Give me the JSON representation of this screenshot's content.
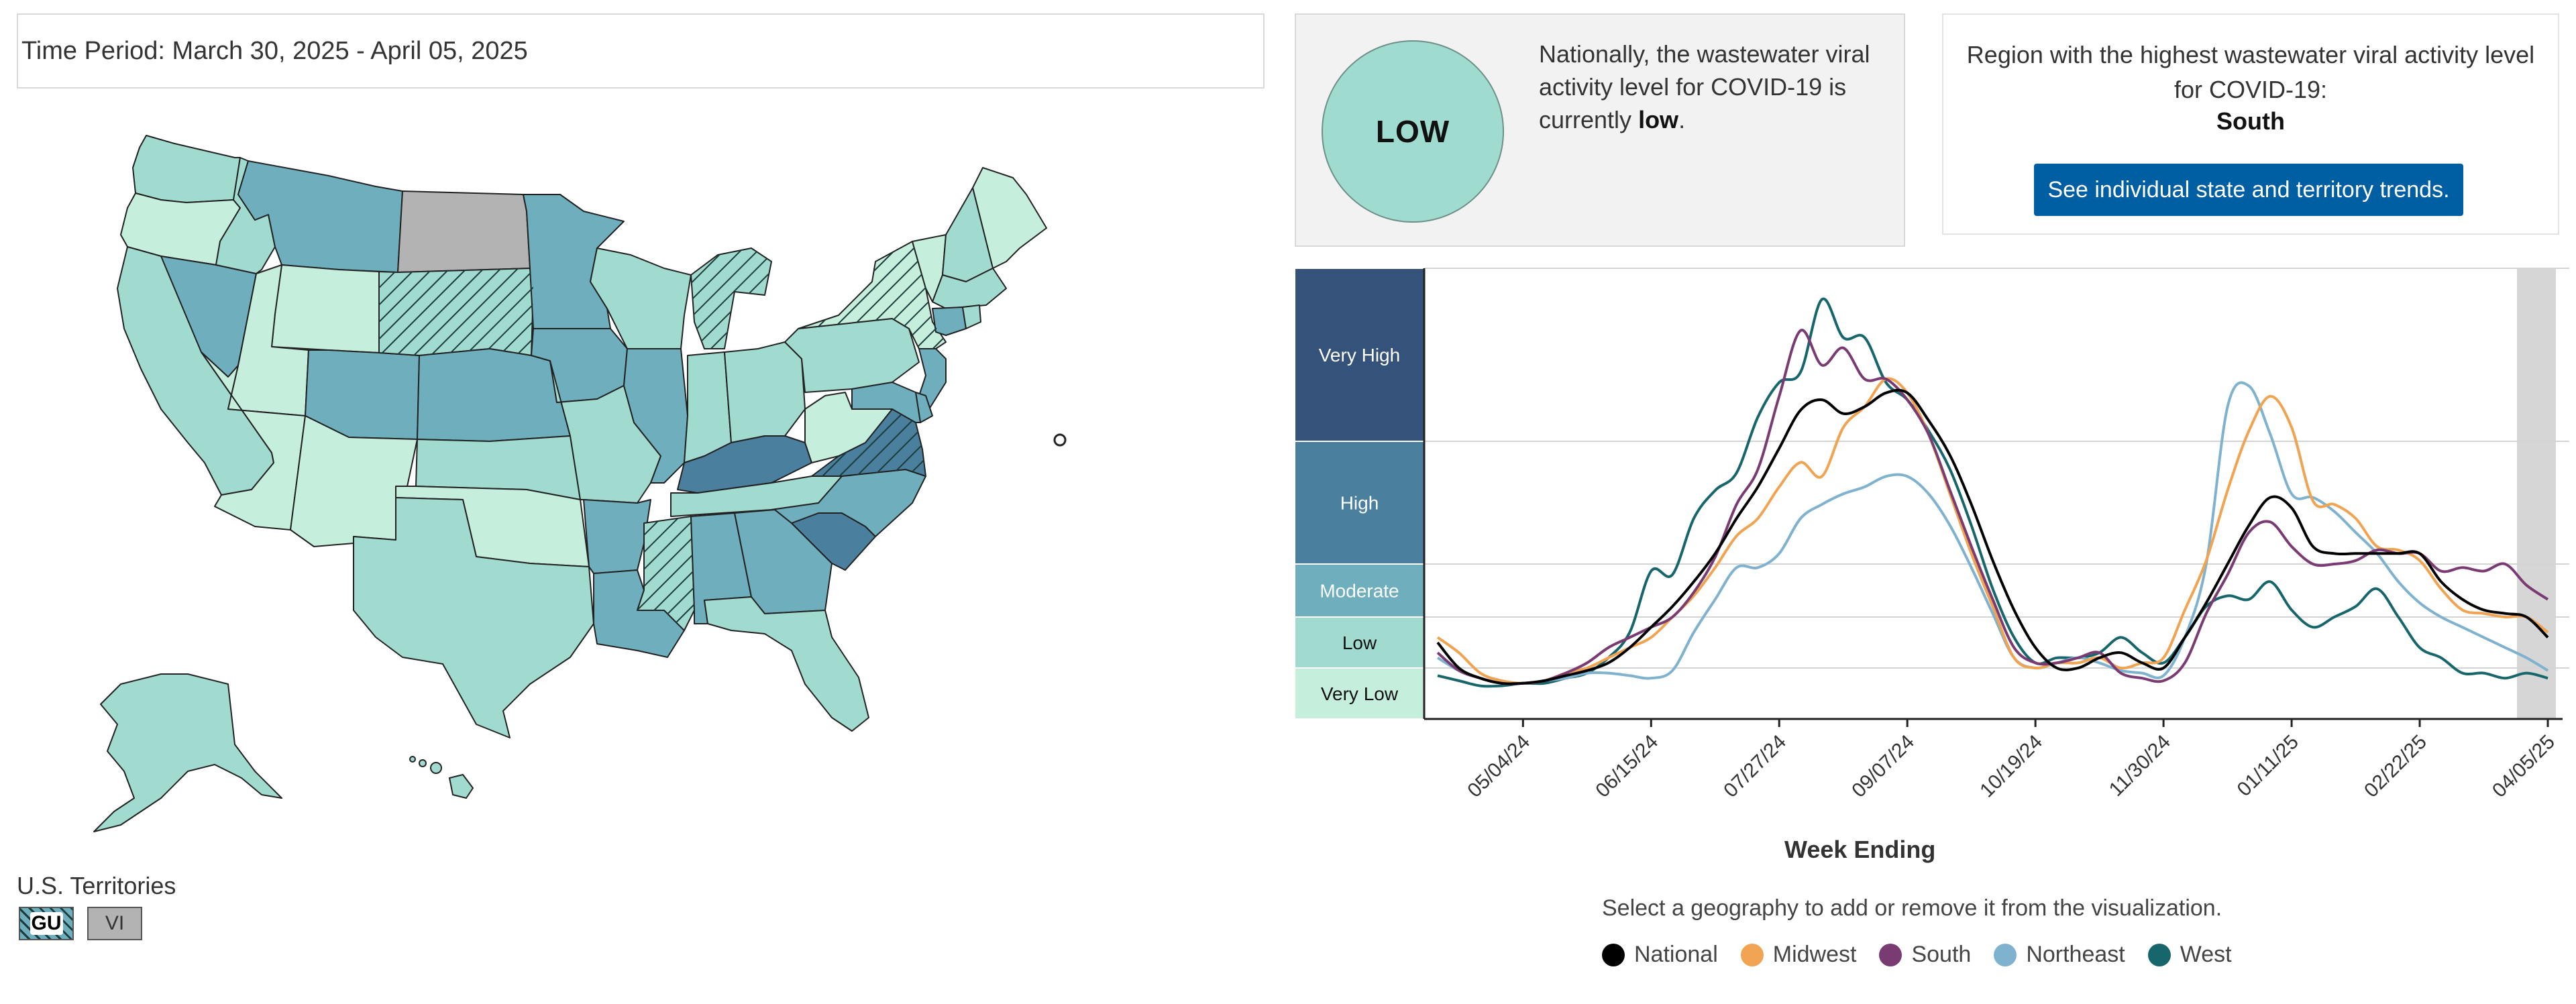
{
  "time_period": "Time Period: March 30, 2025 - April 05, 2025",
  "territories": {
    "label": "U.S. Territories",
    "items": [
      {
        "code": "GU",
        "level": "Moderate",
        "hatched": true
      },
      {
        "code": "VI",
        "level": "No Data",
        "hatched": false
      }
    ]
  },
  "national": {
    "level_badge": "LOW",
    "text_prefix": "Nationally, the wastewater viral activity level for COVID-19 is currently",
    "level_word": "low",
    "text_suffix": "."
  },
  "region": {
    "text": "Region with the highest wastewater viral activity level for COVID-19:",
    "name": "South",
    "button_label": "See individual state and territory trends."
  },
  "level_colors": {
    "Very High": "#34527a",
    "High": "#4a7f9d",
    "Moderate": "#6eaebd",
    "Low": "#a1dbd0",
    "Very Low": "#c6eedd",
    "No Data": "#b3b3b3"
  },
  "map": {
    "states": [
      {
        "name": "Washington",
        "level": "Low"
      },
      {
        "name": "Oregon",
        "level": "Very Low"
      },
      {
        "name": "California",
        "level": "Low"
      },
      {
        "name": "Nevada",
        "level": "Moderate"
      },
      {
        "name": "Idaho",
        "level": "Low"
      },
      {
        "name": "Montana",
        "level": "Moderate"
      },
      {
        "name": "Wyoming",
        "level": "Very Low"
      },
      {
        "name": "Utah",
        "level": "Very Low"
      },
      {
        "name": "Arizona",
        "level": "Very Low"
      },
      {
        "name": "Colorado",
        "level": "Moderate"
      },
      {
        "name": "New Mexico",
        "level": "Very Low"
      },
      {
        "name": "North Dakota",
        "level": "No Data"
      },
      {
        "name": "South Dakota",
        "level": "Low",
        "hatched": true
      },
      {
        "name": "Nebraska",
        "level": "Moderate"
      },
      {
        "name": "Kansas",
        "level": "Low"
      },
      {
        "name": "Oklahoma",
        "level": "Very Low"
      },
      {
        "name": "Texas",
        "level": "Low"
      },
      {
        "name": "Minnesota",
        "level": "Moderate"
      },
      {
        "name": "Iowa",
        "level": "Moderate"
      },
      {
        "name": "Missouri",
        "level": "Low"
      },
      {
        "name": "Arkansas",
        "level": "Moderate"
      },
      {
        "name": "Louisiana",
        "level": "Moderate"
      },
      {
        "name": "Wisconsin",
        "level": "Low"
      },
      {
        "name": "Illinois",
        "level": "Moderate"
      },
      {
        "name": "Michigan",
        "level": "Low",
        "hatched": true
      },
      {
        "name": "Indiana",
        "level": "Low"
      },
      {
        "name": "Ohio",
        "level": "Low"
      },
      {
        "name": "Kentucky",
        "level": "High"
      },
      {
        "name": "Tennessee",
        "level": "Low"
      },
      {
        "name": "Mississippi",
        "level": "Low",
        "hatched": true
      },
      {
        "name": "Alabama",
        "level": "Moderate"
      },
      {
        "name": "Georgia",
        "level": "Moderate"
      },
      {
        "name": "Florida",
        "level": "Low"
      },
      {
        "name": "South Carolina",
        "level": "High"
      },
      {
        "name": "North Carolina",
        "level": "Moderate"
      },
      {
        "name": "Virginia",
        "level": "High",
        "hatched": true
      },
      {
        "name": "West Virginia",
        "level": "Very Low"
      },
      {
        "name": "Pennsylvania",
        "level": "Low"
      },
      {
        "name": "New York",
        "level": "Very Low",
        "hatched": true
      },
      {
        "name": "Maine",
        "level": "Very Low"
      },
      {
        "name": "Vermont",
        "level": "Very Low"
      },
      {
        "name": "New Hampshire",
        "level": "Low"
      },
      {
        "name": "Massachusetts",
        "level": "Low"
      },
      {
        "name": "Connecticut",
        "level": "Moderate"
      },
      {
        "name": "Rhode Island",
        "level": "Low"
      },
      {
        "name": "New Jersey",
        "level": "Moderate"
      },
      {
        "name": "Delaware",
        "level": "Moderate"
      },
      {
        "name": "Maryland",
        "level": "Moderate"
      },
      {
        "name": "Alaska",
        "level": "Low"
      },
      {
        "name": "Hawaii",
        "level": "Low"
      }
    ]
  },
  "chart_data": {
    "type": "line",
    "xlabel": "Week Ending",
    "ylabel": "",
    "x_ticks": [
      "05/04/24",
      "06/15/24",
      "07/27/24",
      "09/07/24",
      "10/19/24",
      "11/30/24",
      "01/11/25",
      "02/22/25",
      "04/05/25"
    ],
    "levels": [
      "Very High",
      "High",
      "Moderate",
      "Low",
      "Very Low"
    ],
    "level_thresholds": [
      0,
      2,
      3,
      4.5,
      8
    ],
    "ylim": [
      0,
      13
    ],
    "provisional_shading": "last weeks (03/15/25 - 04/05/25)",
    "x": [
      "04/06/24",
      "04/13/24",
      "04/20/24",
      "04/27/24",
      "05/04/24",
      "05/11/24",
      "05/18/24",
      "05/25/24",
      "06/01/24",
      "06/08/24",
      "06/15/24",
      "06/22/24",
      "06/29/24",
      "07/06/24",
      "07/13/24",
      "07/20/24",
      "07/27/24",
      "08/03/24",
      "08/10/24",
      "08/17/24",
      "08/24/24",
      "08/31/24",
      "09/07/24",
      "09/14/24",
      "09/21/24",
      "09/28/24",
      "10/05/24",
      "10/12/24",
      "10/19/24",
      "10/26/24",
      "11/02/24",
      "11/09/24",
      "11/16/24",
      "11/23/24",
      "11/30/24",
      "12/07/24",
      "12/14/24",
      "12/21/24",
      "12/28/24",
      "01/04/25",
      "01/11/25",
      "01/18/25",
      "01/25/25",
      "02/01/25",
      "02/08/25",
      "02/15/25",
      "02/22/25",
      "03/01/25",
      "03/08/25",
      "03/15/25",
      "03/22/25",
      "03/29/25",
      "04/05/25"
    ],
    "series": [
      {
        "name": "National",
        "color": "#000000",
        "values": [
          2.5,
          2.0,
          1.6,
          1.4,
          1.4,
          1.5,
          1.7,
          1.9,
          2.1,
          2.4,
          2.8,
          3.3,
          4.0,
          4.8,
          5.8,
          6.7,
          7.8,
          8.9,
          9.2,
          8.8,
          9.0,
          9.4,
          9.4,
          8.6,
          7.6,
          6.2,
          4.6,
          3.2,
          2.4,
          2.0,
          2.0,
          2.2,
          2.3,
          2.1,
          2.0,
          2.6,
          3.4,
          4.5,
          5.6,
          6.4,
          6.1,
          5.0,
          4.8,
          4.8,
          4.8,
          4.8,
          4.8,
          4.0,
          3.5,
          3.2,
          3.1,
          3.0,
          2.6
        ]
      },
      {
        "name": "Midwest",
        "color": "#f0a350",
        "values": [
          2.6,
          2.3,
          1.8,
          1.5,
          1.4,
          1.5,
          1.8,
          2.0,
          2.2,
          2.4,
          2.6,
          3.0,
          3.6,
          4.4,
          5.3,
          5.8,
          6.7,
          7.4,
          7.0,
          8.4,
          9.0,
          9.8,
          9.4,
          8.2,
          6.5,
          4.8,
          3.3,
          2.2,
          2.0,
          2.1,
          2.1,
          2.2,
          2.0,
          2.1,
          2.2,
          3.2,
          4.6,
          6.6,
          8.3,
          9.3,
          8.4,
          6.3,
          6.2,
          5.8,
          5.0,
          4.9,
          4.6,
          3.8,
          3.2,
          3.1,
          3.0,
          3.0,
          2.7
        ]
      },
      {
        "name": "South",
        "color": "#7a3b73",
        "values": [
          2.3,
          1.9,
          1.6,
          1.4,
          1.4,
          1.5,
          1.8,
          2.1,
          2.4,
          2.6,
          2.8,
          3.0,
          3.7,
          4.7,
          6.2,
          7.2,
          9.3,
          11.2,
          10.2,
          10.7,
          9.8,
          9.8,
          9.2,
          8.2,
          6.6,
          5.0,
          3.5,
          2.4,
          2.1,
          2.1,
          2.2,
          2.3,
          1.8,
          1.6,
          1.5,
          2.1,
          3.1,
          4.2,
          5.4,
          5.7,
          5.0,
          4.5,
          4.5,
          4.6,
          4.9,
          4.8,
          4.8,
          4.3,
          4.4,
          4.3,
          4.5,
          3.9,
          3.5
        ]
      },
      {
        "name": "Northeast",
        "color": "#7fb2ce",
        "values": [
          2.2,
          1.9,
          1.6,
          1.4,
          1.4,
          1.5,
          1.6,
          1.8,
          1.8,
          1.7,
          1.6,
          1.9,
          2.7,
          3.5,
          4.4,
          4.4,
          4.8,
          5.8,
          6.2,
          6.5,
          6.7,
          7.0,
          7.0,
          6.5,
          5.6,
          4.4,
          3.1,
          2.2,
          2.0,
          2.1,
          2.2,
          2.1,
          1.9,
          1.8,
          1.7,
          2.6,
          4.5,
          9.0,
          9.6,
          8.2,
          6.5,
          6.4,
          6.0,
          5.4,
          4.8,
          4.0,
          3.4,
          3.0,
          2.8,
          2.6,
          2.4,
          2.2,
          1.9
        ]
      },
      {
        "name": "West",
        "color": "#17666c",
        "values": [
          1.7,
          1.5,
          1.3,
          1.3,
          1.4,
          1.4,
          1.6,
          1.8,
          2.2,
          2.7,
          4.3,
          4.2,
          5.8,
          6.6,
          7.1,
          8.7,
          9.7,
          10.0,
          12.1,
          11.0,
          11.0,
          9.7,
          9.2,
          8.3,
          7.2,
          5.6,
          3.8,
          2.6,
          2.1,
          2.2,
          2.2,
          2.3,
          2.6,
          2.3,
          2.1,
          2.6,
          3.3,
          3.6,
          3.5,
          4.0,
          3.2,
          2.8,
          3.0,
          3.3,
          3.8,
          3.0,
          2.4,
          2.2,
          1.8,
          1.8,
          1.6,
          1.8,
          1.6
        ]
      }
    ]
  }
}
